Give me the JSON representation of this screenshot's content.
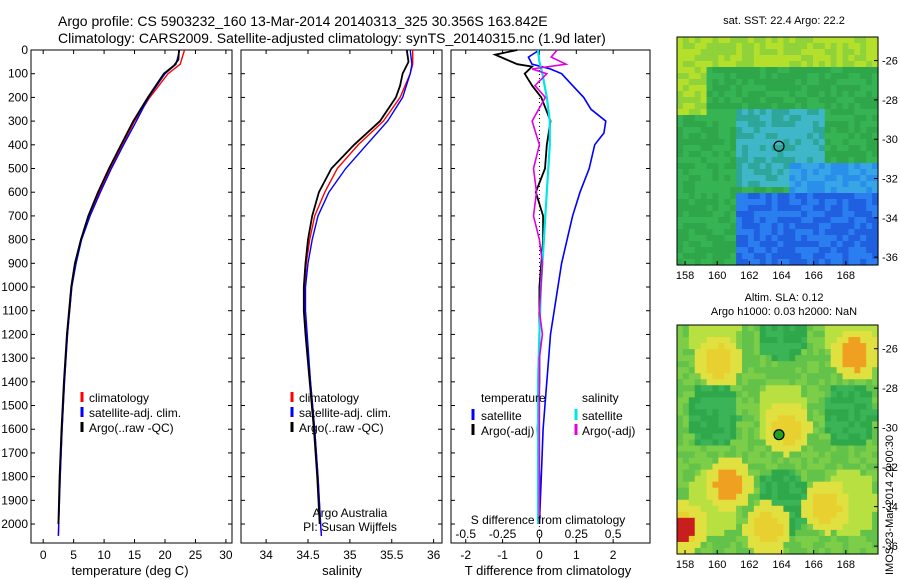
{
  "header": {
    "line1": "Argo profile: CS 5903232_160 13-Mar-2014 20140313_325 30.356S 163.842E",
    "line2": "Climatology: CARS2009. Satellite-adjusted climatology: synTS_20140315.nc (1.9d later)"
  },
  "vertical_label": "IMOS 23-Mar-2014 20:00:30",
  "credit": {
    "line1": "Argo Australia",
    "line2": "PI: Susan Wijffels"
  },
  "chart_data": [
    {
      "id": "temperature",
      "type": "line",
      "xlabel": "temperature (deg C)",
      "xlim": [
        -2,
        31
      ],
      "xticks": [
        0,
        5,
        10,
        15,
        20,
        25,
        30
      ],
      "ylim": [
        2080,
        0
      ],
      "yticks": [
        0,
        100,
        200,
        300,
        400,
        500,
        600,
        700,
        800,
        900,
        1000,
        1100,
        1200,
        1300,
        1400,
        1500,
        1600,
        1700,
        1800,
        1900,
        2000
      ],
      "legend": [
        "climatology",
        "satellite-adj. clim.",
        "Argo(..raw -QC)"
      ],
      "legend_position": "lower-center",
      "series": [
        {
          "name": "climatology",
          "color": "#ff0000",
          "depth": [
            0,
            60,
            100,
            200,
            300,
            400,
            500,
            600,
            700,
            800,
            900,
            1000,
            1200,
            1400,
            1600,
            1800,
            2000,
            2050
          ],
          "values": [
            23.2,
            22.5,
            20.5,
            17.5,
            15,
            13,
            11,
            9.2,
            7.5,
            6.2,
            5.3,
            4.7,
            4,
            3.5,
            3.1,
            2.8,
            2.55,
            2.5
          ]
        },
        {
          "name": "satellite-adj. clim.",
          "color": "#0000ff",
          "depth": [
            0,
            60,
            100,
            200,
            300,
            400,
            500,
            600,
            700,
            800,
            900,
            1000,
            1200,
            1400,
            1600,
            1800,
            2000,
            2050
          ],
          "values": [
            22.4,
            21.8,
            20,
            17.3,
            15.3,
            13.2,
            11.2,
            9.4,
            7.7,
            6.3,
            5.4,
            4.7,
            4,
            3.5,
            3.1,
            2.8,
            2.55,
            2.5
          ]
        },
        {
          "name": "Argo(..raw -QC)",
          "color": "#000000",
          "depth": [
            0,
            40,
            65,
            100,
            200,
            300,
            400,
            500,
            600,
            700,
            800,
            900,
            1000,
            1200,
            1400,
            1600,
            1800,
            2000
          ],
          "values": [
            22.3,
            22.2,
            21.5,
            19.8,
            17.2,
            14.8,
            12.8,
            10.8,
            9,
            7.4,
            6.2,
            5.2,
            4.6,
            3.9,
            3.4,
            3,
            2.7,
            2.5
          ]
        }
      ]
    },
    {
      "id": "salinity",
      "type": "line",
      "xlabel": "salinity",
      "xlim": [
        33.7,
        36.1
      ],
      "xticks": [
        34,
        34.5,
        35,
        35.5,
        36
      ],
      "ylim": [
        2080,
        0
      ],
      "legend": [
        "climatology",
        "satellite-adj. clim.",
        "Argo(..raw -QC)"
      ],
      "legend_position": "lower-center",
      "series": [
        {
          "name": "climatology",
          "color": "#ff0000",
          "depth": [
            0,
            60,
            100,
            200,
            300,
            400,
            500,
            600,
            700,
            800,
            900,
            1000,
            1100,
            1200,
            1400,
            1600,
            1800,
            2000,
            2050
          ],
          "values": [
            35.75,
            35.75,
            35.72,
            35.6,
            35.4,
            35.1,
            34.85,
            34.7,
            34.58,
            34.52,
            34.48,
            34.46,
            34.46,
            34.48,
            34.53,
            34.58,
            34.62,
            34.65,
            34.66
          ]
        },
        {
          "name": "satellite-adj. clim.",
          "color": "#0000ff",
          "depth": [
            0,
            60,
            100,
            200,
            300,
            400,
            500,
            600,
            700,
            800,
            900,
            1000,
            1100,
            1200,
            1400,
            1600,
            1800,
            2000,
            2050
          ],
          "values": [
            35.72,
            35.74,
            35.72,
            35.63,
            35.45,
            35.2,
            34.95,
            34.75,
            34.62,
            34.55,
            34.5,
            34.47,
            34.47,
            34.49,
            34.53,
            34.58,
            34.62,
            34.65,
            34.66
          ]
        },
        {
          "name": "Argo(..raw -QC)",
          "color": "#000000",
          "depth": [
            0,
            50,
            100,
            150,
            200,
            300,
            400,
            500,
            600,
            700,
            800,
            900,
            1000,
            1100,
            1200,
            1400,
            1600,
            1800,
            2000
          ],
          "values": [
            35.68,
            35.7,
            35.63,
            35.6,
            35.55,
            35.36,
            35.05,
            34.78,
            34.63,
            34.55,
            34.5,
            34.47,
            34.45,
            34.45,
            34.47,
            34.52,
            34.57,
            34.61,
            34.64
          ]
        }
      ]
    },
    {
      "id": "difference",
      "type": "line",
      "xlabel_bottom": "T difference from climatology",
      "xlabel_top": "S difference from climatology",
      "xlim_T": [
        -2.4,
        3
      ],
      "xticks_T": [
        -2,
        -1,
        0,
        1,
        2
      ],
      "xticks_S": [
        -0.5,
        -0.25,
        0,
        0.25,
        0.5
      ],
      "xticklabels_S": [
        "-0.5",
        "-0.25",
        "0",
        "0.25",
        "0.5"
      ],
      "ylim": [
        2080,
        0
      ],
      "legend_temperature": {
        "title": "temperature",
        "items": [
          "satellite",
          "Argo(-adj)"
        ]
      },
      "legend_salinity": {
        "title": "salinity",
        "items": [
          "satellite",
          "Argo(-adj)"
        ]
      },
      "series": [
        {
          "name": "temperature satellite",
          "color": "#0000ff",
          "depth": [
            0,
            30,
            60,
            80,
            100,
            150,
            200,
            250,
            300,
            350,
            400,
            500,
            600,
            700,
            800,
            900,
            1000,
            1100,
            1200,
            1300,
            1400,
            1600,
            1800,
            2000
          ],
          "values": [
            0,
            -0.3,
            -0.2,
            0.3,
            0.6,
            0.9,
            1.2,
            1.4,
            1.8,
            1.75,
            1.5,
            1.35,
            1.1,
            0.9,
            0.75,
            0.6,
            0.5,
            0.4,
            0.3,
            0.25,
            0.2,
            0.1,
            0.05,
            0
          ]
        },
        {
          "name": "temperature Argo(-adj)",
          "color": "#000000",
          "depth": [
            0,
            20,
            40,
            60,
            70,
            100,
            150,
            200,
            300,
            400,
            500,
            600,
            700,
            800,
            900,
            1000,
            1200,
            1400,
            1600,
            1800,
            2000
          ],
          "values": [
            -0.6,
            -1.2,
            -0.9,
            -0.6,
            -0.2,
            -0.4,
            -0.2,
            0.05,
            0.3,
            0.2,
            0.15,
            -0.1,
            0.1,
            0.1,
            0.05,
            0,
            0,
            0,
            -0.05,
            0,
            0
          ]
        },
        {
          "name": "salinity satellite",
          "color": "#00e5e5",
          "depth": [
            0,
            50,
            100,
            200,
            300,
            400,
            500,
            600,
            700,
            800,
            900,
            1000,
            1200,
            1400,
            1600,
            1800,
            2000
          ],
          "values": [
            -0.01,
            0.0,
            0.02,
            0.05,
            0.07,
            0.07,
            0.06,
            0.05,
            0.04,
            0.03,
            0.02,
            0.01,
            0.0,
            -0.01,
            -0.01,
            -0.01,
            -0.01
          ]
        },
        {
          "name": "salinity Argo(-adj)",
          "color": "#e000e0",
          "depth": [
            0,
            30,
            60,
            80,
            100,
            150,
            200,
            300,
            400,
            500,
            600,
            700,
            800,
            900,
            1000,
            1100,
            1200,
            1300,
            1400,
            1600,
            1800,
            2000
          ],
          "values": [
            0.12,
            0.08,
            0.18,
            -0.05,
            0.05,
            -0.03,
            0.04,
            -0.05,
            0.0,
            -0.04,
            -0.02,
            -0.04,
            0.0,
            0.02,
            0.01,
            0.0,
            0.02,
            0.0,
            0.0,
            0.0,
            0.0,
            0.0
          ]
        }
      ]
    },
    {
      "id": "sst_map",
      "type": "heatmap",
      "title": "sat. SST: 22.4  Argo: 22.2",
      "xlim": [
        157.5,
        170
      ],
      "ylim": [
        -36.4,
        -24.8
      ],
      "xticks": [
        158,
        160,
        162,
        164,
        166,
        168
      ],
      "yticks": [
        -26,
        -28,
        -30,
        -32,
        -34,
        -36
      ],
      "argo_position": [
        163.842,
        -30.356
      ]
    },
    {
      "id": "sla_map",
      "type": "heatmap",
      "title": "Altim. SLA: 0.12",
      "subtitle": "Argo h1000: 0.03 h2000: NaN",
      "xlim": [
        157.5,
        170
      ],
      "ylim": [
        -36.4,
        -24.8
      ],
      "xticks": [
        158,
        160,
        162,
        164,
        166,
        168
      ],
      "yticks": [
        -26,
        -28,
        -30,
        -32,
        -34,
        -36
      ],
      "argo_position": [
        163.842,
        -30.356
      ]
    }
  ]
}
